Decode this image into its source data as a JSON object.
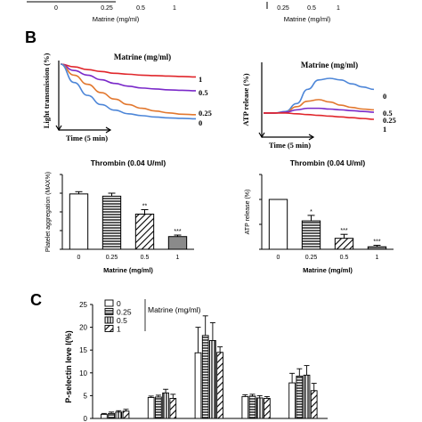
{
  "panels": {
    "top_strip": {
      "left_ticks": [
        "0",
        "0.25",
        "0.5",
        "1"
      ],
      "left_xlabel": "Matrine (mg/ml)",
      "right_ticks": [
        "0.25",
        "0.5",
        "1"
      ],
      "right_xlabel": "Matrine (mg/ml)"
    },
    "B": {
      "label": "B"
    },
    "C": {
      "label": "C"
    }
  },
  "colors": {
    "red": "#e0262b",
    "purple": "#7a29c9",
    "orange": "#e2782f",
    "blue": "#4d86d8",
    "black": "#000000"
  },
  "chart_data": [
    {
      "id": "light-transmission",
      "type": "line",
      "title": "Matrine (mg/ml)",
      "ylabel": "Light transmission (%)",
      "xlabel": "Time (5 min)",
      "series": [
        {
          "name": "1",
          "color": "#e0262b",
          "values": [
            0,
            -3,
            -6,
            -8,
            -10,
            -11,
            -12,
            -12.5,
            -13,
            -13.5,
            -14
          ]
        },
        {
          "name": "0.5",
          "color": "#7a29c9",
          "values": [
            0,
            -7,
            -12,
            -17,
            -21,
            -24,
            -26,
            -27,
            -28,
            -28.5,
            -29
          ]
        },
        {
          "name": "0.25",
          "color": "#e2782f",
          "values": [
            0,
            -12,
            -22,
            -31,
            -38,
            -44,
            -48,
            -51,
            -53,
            -54.5,
            -55
          ]
        },
        {
          "name": "0",
          "color": "#4d86d8",
          "values": [
            0,
            -20,
            -34,
            -44,
            -50,
            -54,
            -56,
            -57.5,
            -58.5,
            -59,
            -59.5
          ]
        }
      ]
    },
    {
      "id": "atp-release-trace",
      "type": "line",
      "title": "Matrine (mg/ml)",
      "ylabel": "ATP release (%)",
      "xlabel": "Time (5 min)",
      "series": [
        {
          "name": "0",
          "color": "#4d86d8",
          "values": [
            0,
            0,
            2,
            12,
            30,
            42,
            44,
            42,
            37,
            33,
            30
          ]
        },
        {
          "name": "0.5",
          "color": "#e2782f",
          "values": [
            0,
            0,
            1,
            8,
            15,
            17,
            14,
            10,
            7,
            5,
            4
          ]
        },
        {
          "name": "0.25",
          "color": "#7a29c9",
          "values": [
            0,
            0,
            1,
            4,
            6,
            6,
            5,
            4,
            3,
            2,
            1
          ]
        },
        {
          "name": "1",
          "color": "#e0262b",
          "values": [
            0,
            0,
            0,
            -1,
            -2,
            -3,
            -4,
            -5,
            -6,
            -7,
            -8
          ]
        }
      ]
    },
    {
      "id": "platelet-aggregation",
      "type": "bar",
      "title": "Thrombin (0.04 U/ml)",
      "xlabel": "Matrine (mg/ml)",
      "ylabel": "Platelet aggregation (MAX%)",
      "categories": [
        "0",
        "0.25",
        "0.5",
        "1"
      ],
      "values": [
        74,
        71,
        47,
        17
      ],
      "errors": [
        3,
        4,
        6,
        2
      ],
      "significance": [
        "",
        "",
        "**",
        "***"
      ],
      "patterns": [
        "white",
        "hlines",
        "diag",
        "grey"
      ],
      "ylim": [
        0,
        100
      ]
    },
    {
      "id": "atp-release-bar",
      "type": "bar",
      "title": "Thrombin (0.04 U/ml)",
      "xlabel": "Matrine (mg/ml)",
      "ylabel": "ATP release (%)",
      "categories": [
        "0",
        "0.25",
        "0.5",
        "1"
      ],
      "values": [
        100,
        57,
        22,
        5
      ],
      "errors": [
        0,
        11,
        8,
        3
      ],
      "significance": [
        "",
        "*",
        "***",
        "***"
      ],
      "patterns": [
        "white",
        "hlines",
        "diag",
        "grey"
      ],
      "ylim": [
        0,
        150
      ]
    },
    {
      "id": "p-selectin",
      "type": "bar",
      "ylabel": "P-selectin leve l(%)",
      "yticks": [
        "0",
        "5",
        "10",
        "15",
        "20",
        "25"
      ],
      "ylim": [
        0,
        25
      ],
      "legend_title": "Matrine (mg/ml)",
      "legend": [
        "0",
        "0.25",
        "0.5",
        "1"
      ],
      "patterns": [
        "white",
        "hlines",
        "vlines",
        "diag"
      ],
      "groups": [
        {
          "values": [
            0.9,
            1.1,
            1.4,
            1.6
          ],
          "errors": [
            0.2,
            0.3,
            0.3,
            0.4
          ]
        },
        {
          "values": [
            4.6,
            4.7,
            5.6,
            4.4
          ],
          "errors": [
            0.3,
            0.4,
            0.8,
            0.9
          ]
        },
        {
          "values": [
            14.4,
            18.2,
            17.1,
            14.5
          ],
          "errors": [
            5.6,
            4.3,
            3.9,
            1.2
          ]
        },
        {
          "values": [
            4.8,
            4.9,
            4.5,
            4.4
          ],
          "errors": [
            0.4,
            0.4,
            0.5,
            0.4
          ]
        },
        {
          "values": [
            7.8,
            9.3,
            9.5,
            6.1
          ],
          "errors": [
            2.1,
            1.6,
            2.1,
            1.6
          ]
        }
      ]
    }
  ]
}
